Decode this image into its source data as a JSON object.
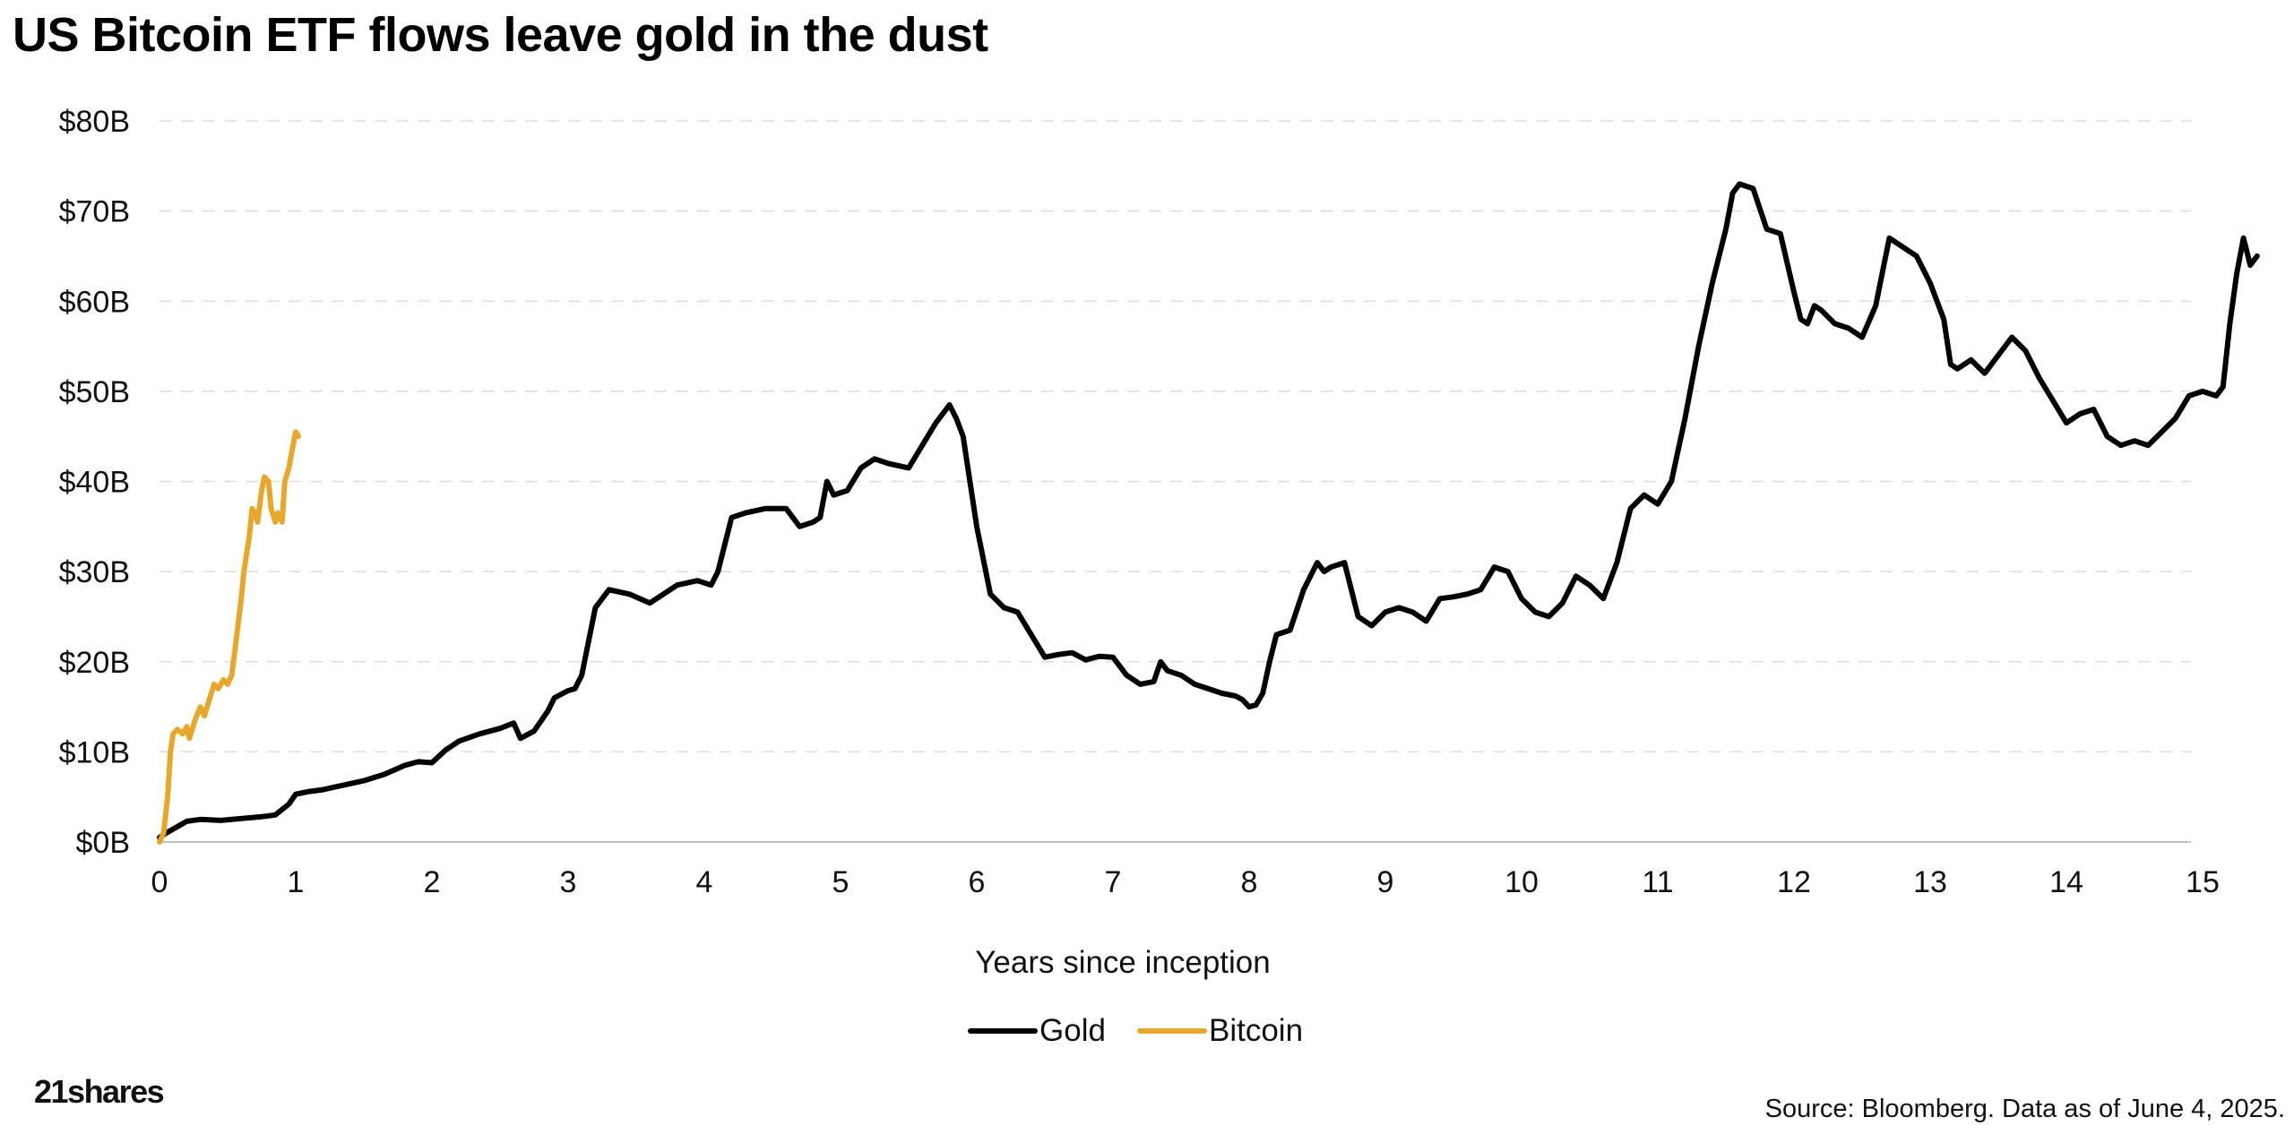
{
  "page": {
    "title": "US Bitcoin ETF flows leave gold in the dust",
    "source": "Source: Bloomberg. Data as of June 4, 2025.",
    "logo_text": "21shares"
  },
  "chart_data": {
    "type": "line",
    "title": "US Bitcoin ETF flows leave gold in the dust",
    "xlabel": "Years since inception",
    "ylabel": "",
    "xlim": [
      0,
      15.4
    ],
    "ylim": [
      0,
      80
    ],
    "x_ticks": [
      0,
      1,
      2,
      3,
      4,
      5,
      6,
      7,
      8,
      9,
      10,
      11,
      12,
      13,
      14,
      15
    ],
    "x_tick_labels": [
      "0",
      "1",
      "2",
      "3",
      "4",
      "5",
      "6",
      "7",
      "8",
      "9",
      "10",
      "11",
      "12",
      "13",
      "14",
      "15"
    ],
    "y_ticks": [
      0,
      10,
      20,
      30,
      40,
      50,
      60,
      70,
      80
    ],
    "y_tick_labels": [
      "$0B",
      "$10B",
      "$20B",
      "$30B",
      "$40B",
      "$50B",
      "$60B",
      "$70B",
      "$80B"
    ],
    "grid": "horizontal-dashed",
    "legend": "bottom-center",
    "series": [
      {
        "name": "Gold",
        "color": "#000000",
        "x": [
          0.05,
          0.12,
          0.2,
          0.3,
          0.45,
          0.6,
          0.75,
          0.85,
          0.95,
          1.0,
          1.1,
          1.2,
          1.35,
          1.5,
          1.65,
          1.8,
          1.9,
          2.0,
          2.1,
          2.2,
          2.35,
          2.5,
          2.6,
          2.65,
          2.75,
          2.85,
          2.9,
          3.0,
          3.05,
          3.1,
          3.2,
          3.3,
          3.45,
          3.6,
          3.8,
          3.95,
          4.05,
          4.1,
          4.2,
          4.3,
          4.45,
          4.6,
          4.7,
          4.8,
          4.85,
          4.9,
          4.95,
          5.05,
          5.15,
          5.25,
          5.35,
          5.5,
          5.6,
          5.7,
          5.8,
          5.85,
          5.9,
          6.0,
          6.1,
          6.2,
          6.3,
          6.4,
          6.5,
          6.6,
          6.7,
          6.8,
          6.9,
          7.0,
          7.1,
          7.2,
          7.3,
          7.35,
          7.4,
          7.5,
          7.6,
          7.7,
          7.8,
          7.9,
          7.95,
          8.0,
          8.05,
          8.1,
          8.15,
          8.2,
          8.3,
          8.4,
          8.5,
          8.55,
          8.6,
          8.7,
          8.8,
          8.9,
          9.0,
          9.1,
          9.2,
          9.3,
          9.4,
          9.5,
          9.6,
          9.7,
          9.8,
          9.9,
          10.0,
          10.1,
          10.2,
          10.3,
          10.4,
          10.5,
          10.6,
          10.7,
          10.8,
          10.9,
          11.0,
          11.1,
          11.2,
          11.3,
          11.4,
          11.5,
          11.55,
          11.6,
          11.7,
          11.8,
          11.9,
          12.0,
          12.05,
          12.1,
          12.15,
          12.2,
          12.3,
          12.4,
          12.5,
          12.6,
          12.7,
          12.8,
          12.9,
          13.0,
          13.1,
          13.15,
          13.2,
          13.3,
          13.4,
          13.5,
          13.6,
          13.7,
          13.8,
          13.9,
          14.0,
          14.1,
          14.2,
          14.3,
          14.4,
          14.5,
          14.6,
          14.7,
          14.8,
          14.9,
          15.0,
          15.1,
          15.15,
          15.2,
          15.25,
          15.3,
          15.35,
          15.4
        ],
        "values": [
          1.0,
          1.6,
          2.3,
          2.5,
          2.4,
          2.6,
          2.8,
          3.0,
          4.2,
          5.3,
          5.6,
          5.8,
          6.3,
          6.8,
          7.5,
          8.5,
          8.9,
          8.8,
          10.2,
          11.2,
          12.0,
          12.6,
          13.2,
          11.5,
          12.3,
          14.5,
          16.0,
          16.8,
          17.0,
          18.5,
          26.0,
          28.0,
          27.5,
          26.5,
          28.5,
          29.0,
          28.5,
          30.0,
          36.0,
          36.5,
          37.0,
          37.0,
          35.0,
          35.5,
          36.0,
          40.0,
          38.5,
          39.0,
          41.5,
          42.5,
          42.0,
          41.5,
          44.0,
          46.5,
          48.5,
          47.0,
          45.0,
          35.0,
          27.5,
          26.0,
          25.5,
          23.0,
          20.5,
          20.8,
          21.0,
          20.2,
          20.6,
          20.5,
          18.5,
          17.5,
          17.8,
          20.0,
          19.0,
          18.5,
          17.5,
          17.0,
          16.5,
          16.2,
          15.8,
          15.0,
          15.2,
          16.5,
          20.0,
          23.0,
          23.5,
          28.0,
          31.0,
          30.0,
          30.5,
          31.0,
          25.0,
          24.0,
          25.5,
          26.0,
          25.5,
          24.5,
          27.0,
          27.2,
          27.5,
          28.0,
          30.5,
          30.0,
          27.0,
          25.5,
          25.0,
          26.5,
          29.5,
          28.5,
          27.0,
          31.0,
          37.0,
          38.5,
          37.5,
          40.0,
          47.0,
          55.0,
          62.0,
          68.0,
          72.0,
          73.0,
          72.5,
          68.0,
          67.5,
          61.0,
          58.0,
          57.5,
          59.5,
          59.0,
          57.5,
          57.0,
          56.0,
          59.5,
          67.0,
          66.0,
          65.0,
          62.0,
          58.0,
          53.0,
          52.5,
          53.5,
          52.0,
          54.0,
          56.0,
          54.5,
          51.5,
          49.0,
          46.5,
          47.5,
          48.0,
          45.0,
          44.0,
          44.5,
          44.0,
          45.5,
          47.0,
          49.5,
          50.0,
          49.5,
          50.5,
          57.5,
          63.0,
          67.0,
          64.0,
          65.0
        ],
        "start_x": 0.0,
        "start_value": 0.5
      },
      {
        "name": "Bitcoin",
        "color": "#E8A62B",
        "x": [
          0.0,
          0.03,
          0.06,
          0.08,
          0.1,
          0.13,
          0.17,
          0.2,
          0.22,
          0.26,
          0.3,
          0.33,
          0.36,
          0.4,
          0.43,
          0.47,
          0.5,
          0.53,
          0.56,
          0.6,
          0.62,
          0.66,
          0.68,
          0.7,
          0.72,
          0.75,
          0.77,
          0.8,
          0.82,
          0.85,
          0.87,
          0.9,
          0.92,
          0.95,
          0.98,
          1.0,
          1.02
        ],
        "values": [
          0.0,
          1.0,
          5.0,
          10.0,
          12.0,
          12.5,
          12.0,
          12.8,
          11.5,
          13.5,
          15.0,
          14.0,
          15.5,
          17.5,
          17.0,
          18.0,
          17.5,
          18.5,
          22.0,
          27.0,
          30.0,
          34.0,
          37.0,
          36.5,
          35.5,
          39.0,
          40.5,
          40.0,
          37.0,
          35.5,
          36.5,
          35.5,
          40.0,
          41.5,
          44.0,
          45.5,
          45.0
        ]
      }
    ]
  }
}
